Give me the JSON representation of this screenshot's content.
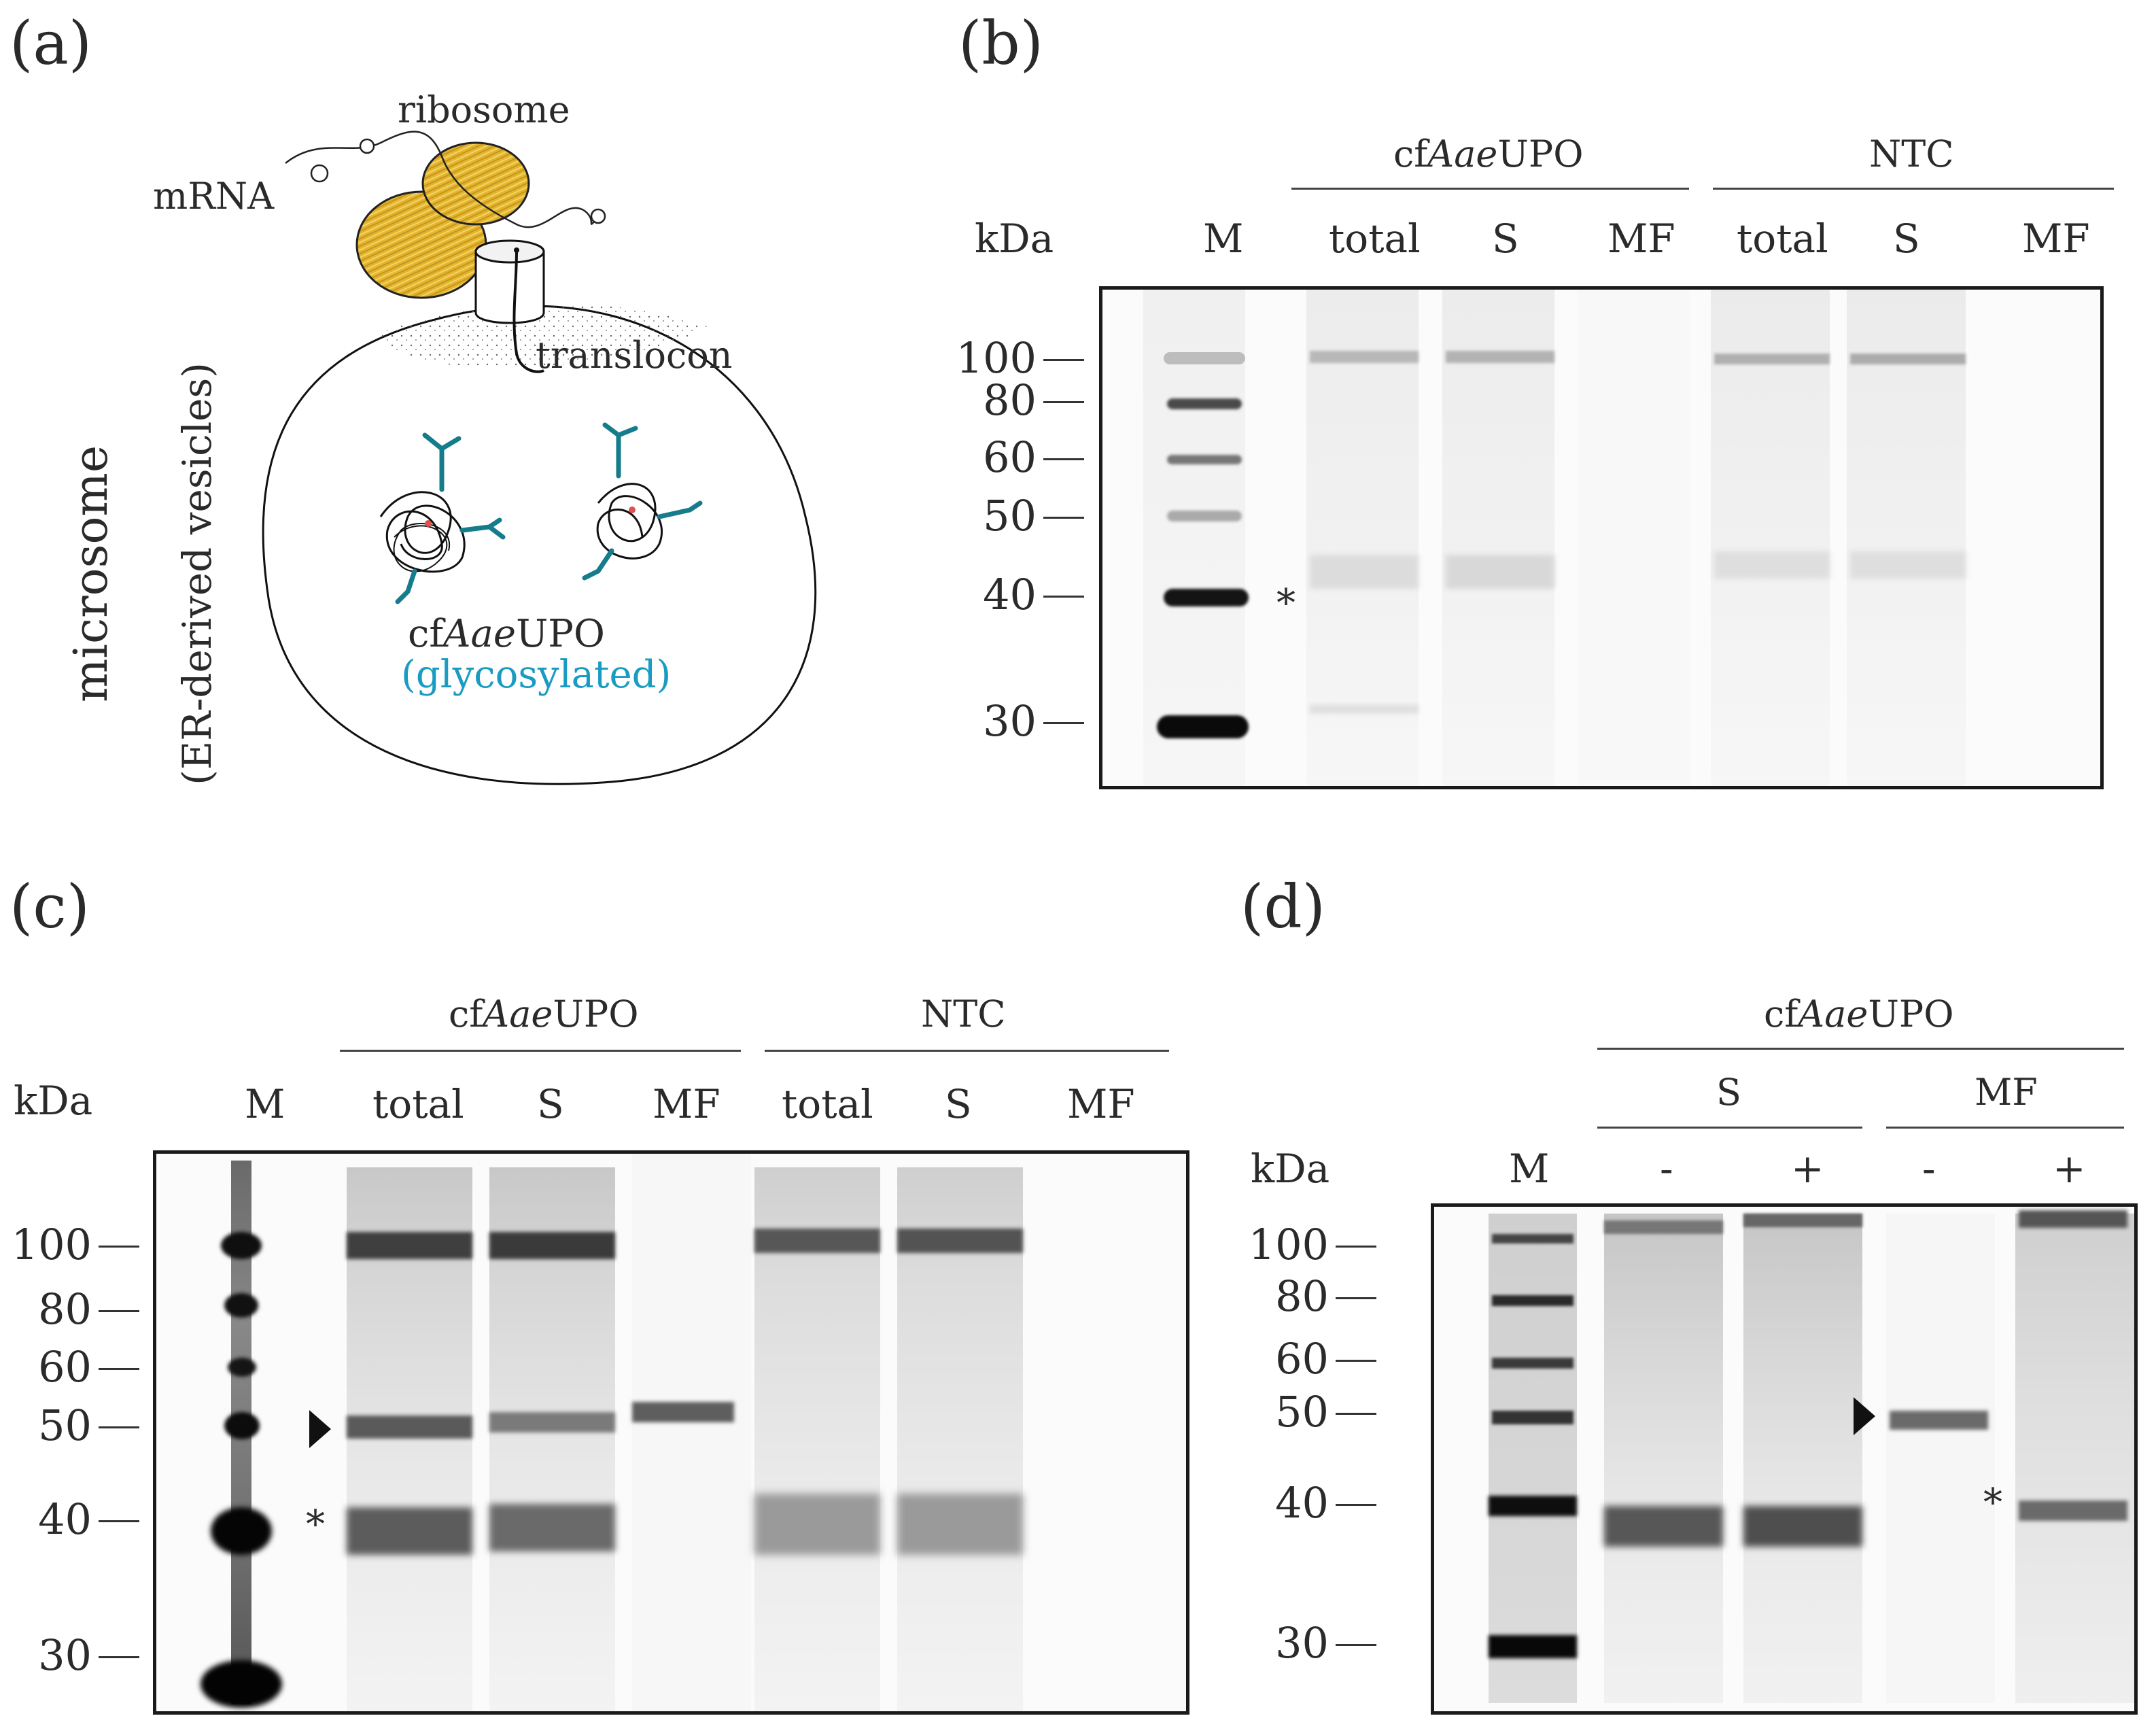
{
  "panels": {
    "a": {
      "label": "(a)",
      "ribosome": "ribosome",
      "mrna": "mRNA",
      "translocon": "translocon",
      "microsome": "microsome",
      "er_vesicles": "(ER-derived vesicles)",
      "protein": "cfAaeUPO",
      "protein_prefix": "cf",
      "protein_italic": "Aae",
      "protein_suffix": "UPO",
      "glyco": "(glycosylated)"
    },
    "b": {
      "label": "(b)",
      "group1": {
        "prefix": "cf",
        "italic": "Aae",
        "suffix": "UPO"
      },
      "group2": "NTC",
      "kda": "kDa",
      "lanes": [
        "M",
        "total",
        "S",
        "MF",
        "total",
        "S",
        "MF"
      ],
      "markers": [
        "100",
        "80",
        "60",
        "50",
        "40",
        "30"
      ],
      "asterisk": "*"
    },
    "c": {
      "label": "(c)",
      "group1": {
        "prefix": "cf",
        "italic": "Aae",
        "suffix": "UPO"
      },
      "group2": "NTC",
      "kda": "kDa",
      "lanes": [
        "M",
        "total",
        "S",
        "MF",
        "total",
        "S",
        "MF"
      ],
      "markers": [
        "100",
        "80",
        "60",
        "50",
        "40",
        "30"
      ],
      "asterisk": "*"
    },
    "d": {
      "label": "(d)",
      "group1": {
        "prefix": "cf",
        "italic": "Aae",
        "suffix": "UPO"
      },
      "sub1": "S",
      "sub2": "MF",
      "kda": "kDa",
      "lanes": [
        "M",
        "-",
        "+",
        "-",
        "+"
      ],
      "markers": [
        "100",
        "80",
        "60",
        "50",
        "40",
        "30"
      ],
      "asterisk": "*"
    }
  },
  "colors": {
    "ribosome": "#e2b52c",
    "glyco": "#1a9cc2",
    "glycan": "#147c8a"
  }
}
